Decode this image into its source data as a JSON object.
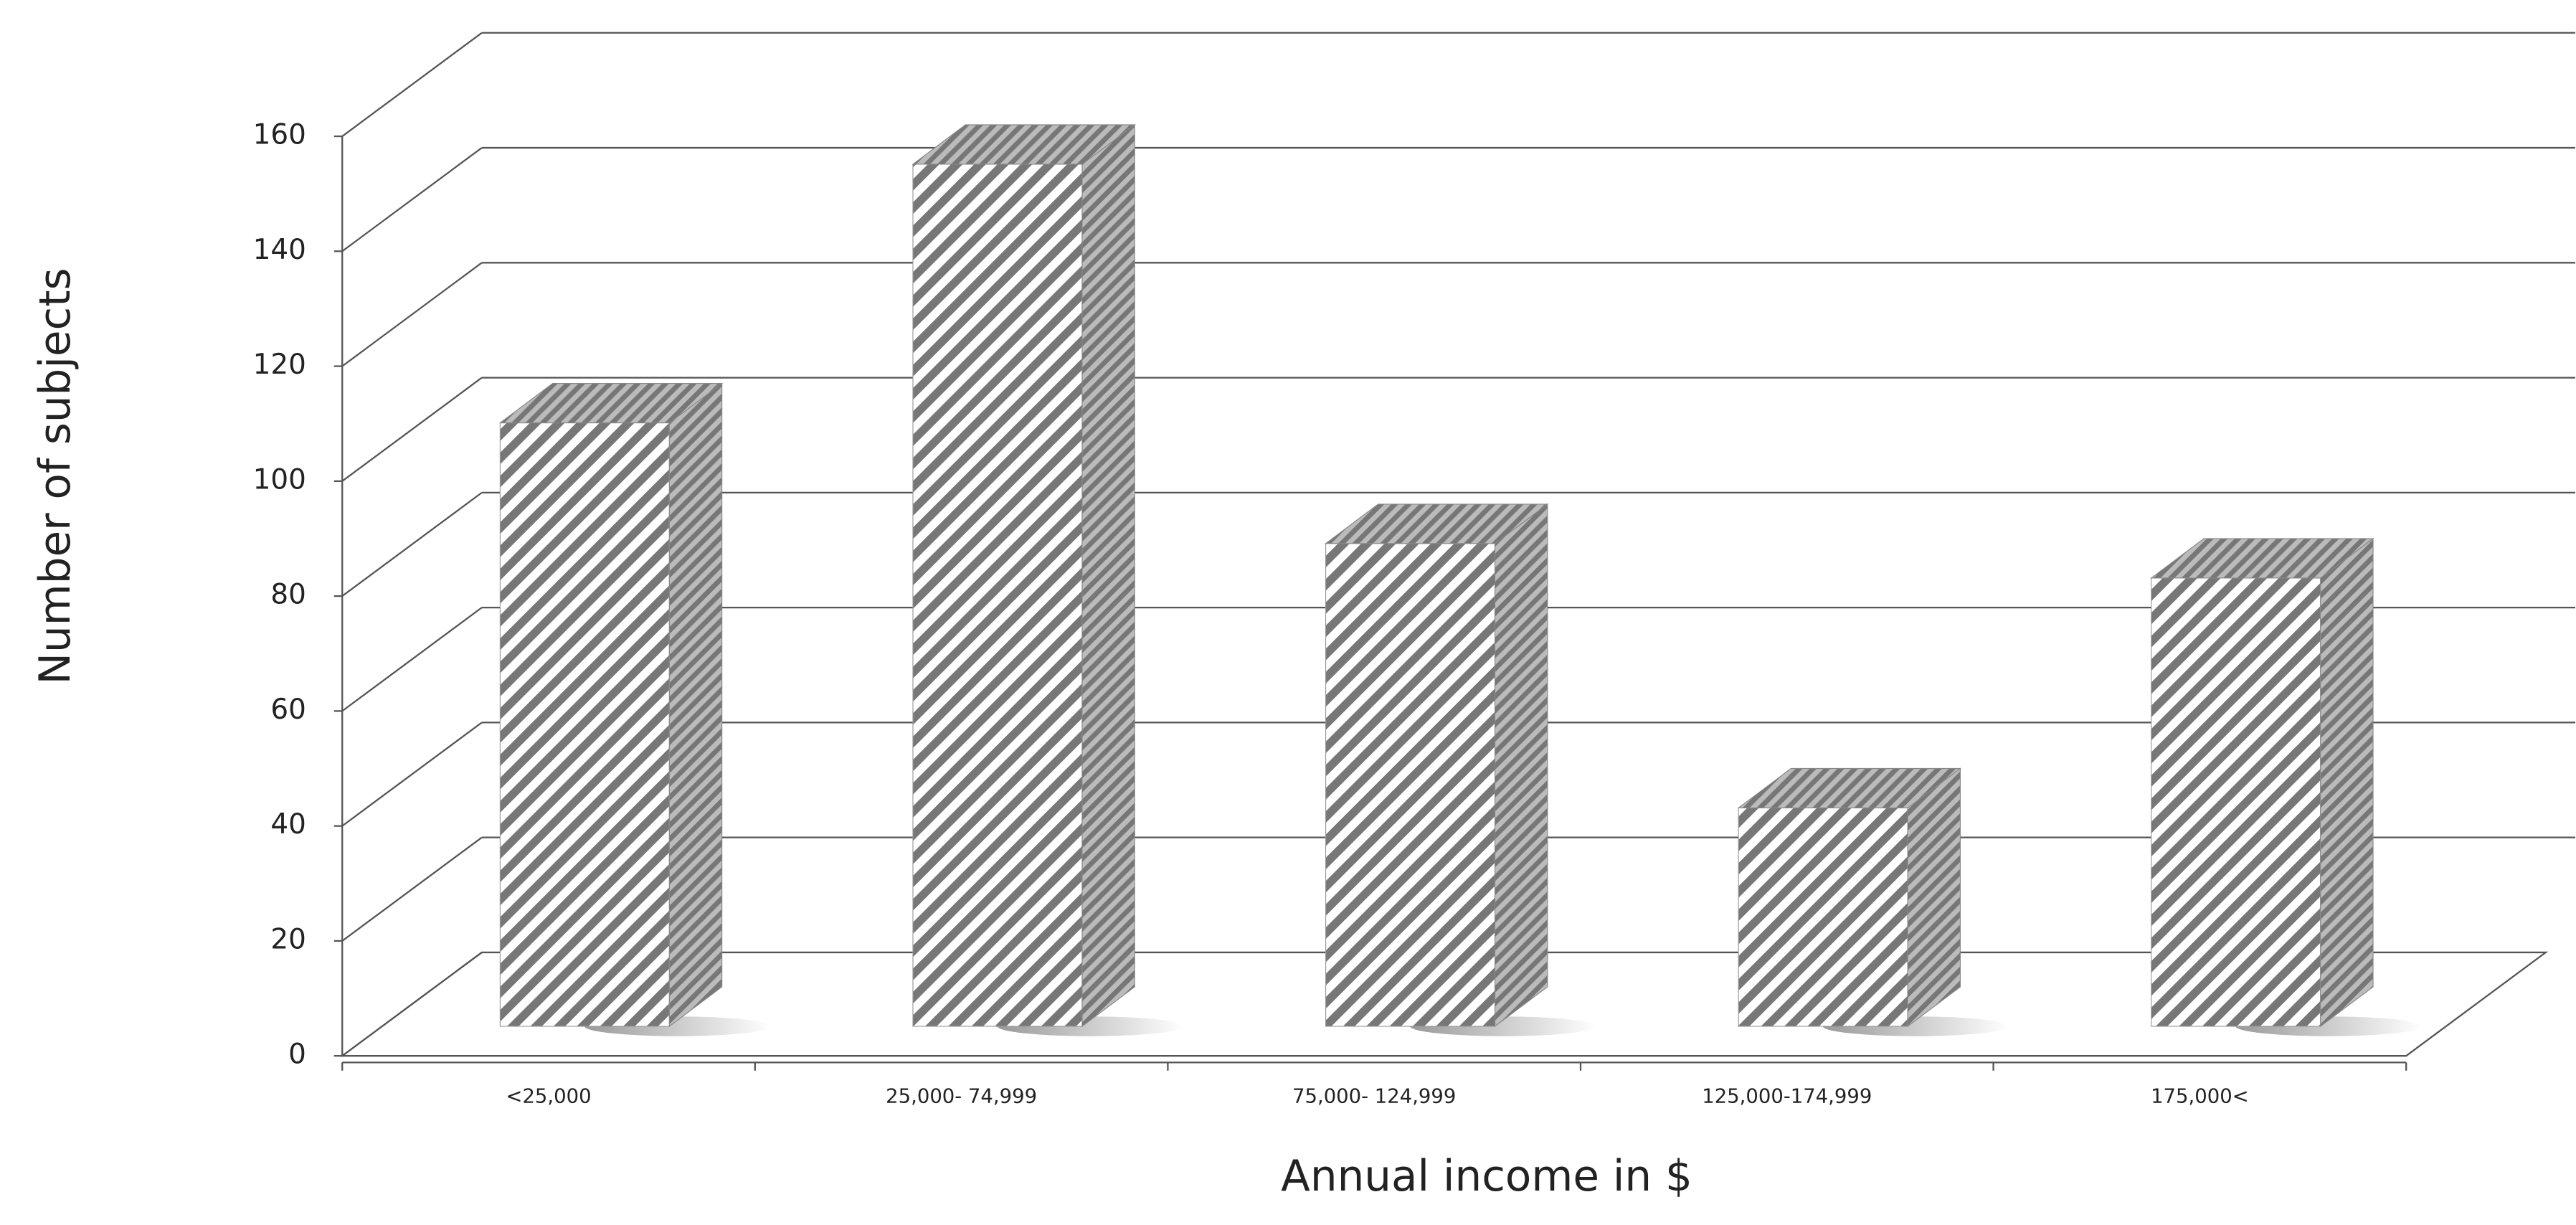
{
  "chart_data": {
    "type": "bar3d",
    "categories": [
      "<25,000",
      "25,000- 74,999",
      "75,000- 124,999",
      "125,000-174,999",
      "175,000<"
    ],
    "values": [
      105,
      150,
      84,
      38,
      78
    ],
    "x_label": "Annual income in $",
    "y_label": "Number of subjects",
    "ylim": [
      0,
      160
    ],
    "yticks": [
      0,
      20,
      40,
      60,
      80,
      100,
      120,
      140,
      160
    ],
    "grid": true,
    "color": "#777777"
  }
}
